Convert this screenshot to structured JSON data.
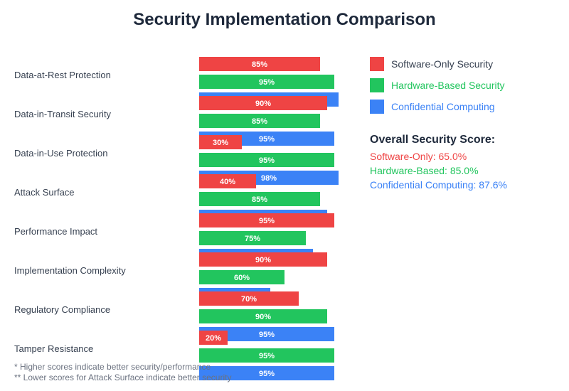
{
  "chart_data": {
    "type": "bar",
    "orientation": "horizontal",
    "title": "Security Implementation Comparison",
    "xlabel": "",
    "ylabel": "",
    "xlim": [
      0,
      100
    ],
    "value_suffix": "%",
    "grid": false,
    "legend_position": "right",
    "categories": [
      "Data-at-Rest Protection",
      "Data-in-Transit Security",
      "Data-in-Use Protection",
      "Attack Surface",
      "Performance Impact",
      "Implementation Complexity",
      "Regulatory Compliance",
      "Tamper Resistance"
    ],
    "series": [
      {
        "name": "Software-Only Security",
        "color": "#ef4444",
        "values": [
          85,
          90,
          30,
          40,
          95,
          90,
          70,
          20
        ]
      },
      {
        "name": "Hardware-Based Security",
        "color": "#22c55e",
        "values": [
          95,
          85,
          95,
          85,
          75,
          60,
          90,
          95
        ]
      },
      {
        "name": "Confidential Computing",
        "color": "#3b82f6",
        "values": [
          98,
          95,
          98,
          90,
          80,
          50,
          95,
          95
        ]
      }
    ],
    "legend": [
      {
        "label": "Software-Only Security",
        "color": "#ef4444",
        "text_color": "#374151"
      },
      {
        "label": "Hardware-Based Security",
        "color": "#22c55e",
        "text_color": "#22c55e"
      },
      {
        "label": "Confidential Computing",
        "color": "#3b82f6",
        "text_color": "#3b82f6"
      }
    ],
    "overall_score": {
      "title": "Overall Security Score:",
      "lines": [
        {
          "label": "Software-Only: 65.0%",
          "color": "#ef4444"
        },
        {
          "label": "Hardware-Based: 85.0%",
          "color": "#22c55e"
        },
        {
          "label": "Confidential Computing: 87.6%",
          "color": "#3b82f6"
        }
      ]
    },
    "annotations": [
      "* Higher scores indicate better security/performance",
      "** Lower scores for Attack Surface indicate better security"
    ]
  }
}
